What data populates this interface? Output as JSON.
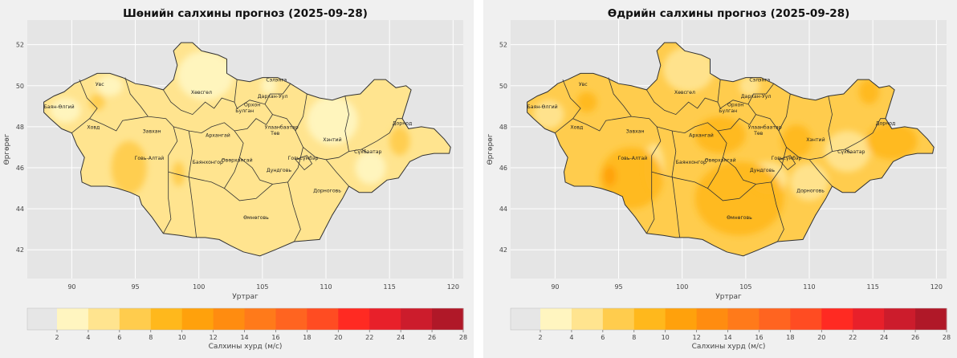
{
  "colors": {
    "panel_bg": "#f0f0f0",
    "plot_bg": "#e5e5e5",
    "grid": "#ffffff",
    "border": "#333333",
    "bins": [
      "#e6e6e6",
      "#fff5c0",
      "#ffe48f",
      "#ffcc4d",
      "#ffb81c",
      "#ffa10c",
      "#ff8c10",
      "#ff7a1a",
      "#ff6420",
      "#ff4c22",
      "#ff2a22",
      "#e8202a",
      "#cc1c2c",
      "#b01828"
    ]
  },
  "chart_data": [
    {
      "type": "heatmap",
      "title": "Шөнийн салхины прогноз (2025-09-28)",
      "xlabel": "Уртраг",
      "ylabel": "Өргөрөг",
      "xlim": [
        86.5,
        120.8
      ],
      "ylim": [
        40.6,
        53.2
      ],
      "xticks": [
        "90",
        "95",
        "100",
        "105",
        "110",
        "115",
        "120"
      ],
      "yticks": [
        "42",
        "44",
        "46",
        "48",
        "50",
        "52"
      ],
      "grid": true,
      "colorbar": {
        "label": "Салхины хурд (м/с)",
        "ticks": [
          "2",
          "4",
          "6",
          "8",
          "10",
          "12",
          "14",
          "16",
          "18",
          "20",
          "22",
          "24",
          "26",
          "28"
        ]
      },
      "base_level": "4-6",
      "hotspots": [
        {
          "lon": 94.5,
          "lat": 46.0,
          "rx": 1.4,
          "ry": 1.3,
          "level": "6-8"
        },
        {
          "lon": 92.0,
          "lat": 49.2,
          "rx": 0.6,
          "ry": 0.4,
          "level": "6-8"
        },
        {
          "lon": 115.8,
          "lat": 47.3,
          "rx": 0.8,
          "ry": 0.7,
          "level": "6-8"
        },
        {
          "lon": 98.4,
          "lat": 45.7,
          "rx": 0.5,
          "ry": 0.6,
          "level": "6-8"
        }
      ],
      "calm_areas": [
        {
          "lon": 100.5,
          "lat": 50.5,
          "rx": 2.2,
          "ry": 1.2,
          "level": "2-4"
        },
        {
          "lon": 110.5,
          "lat": 48.3,
          "rx": 2.0,
          "ry": 1.2,
          "level": "2-4"
        },
        {
          "lon": 113.5,
          "lat": 46.0,
          "rx": 1.2,
          "ry": 0.8,
          "level": "2-4"
        },
        {
          "lon": 89.5,
          "lat": 48.8,
          "rx": 1.2,
          "ry": 0.6,
          "level": "2-4"
        },
        {
          "lon": 93.0,
          "lat": 50.0,
          "rx": 1.0,
          "ry": 0.5,
          "level": "2-4"
        },
        {
          "lon": 105.5,
          "lat": 50.0,
          "rx": 0.6,
          "ry": 0.4,
          "level": "2-4"
        }
      ],
      "regions": [
        {
          "name": "Увс",
          "lon": 92.2,
          "lat": 50.0
        },
        {
          "name": "Баян-Өлгий",
          "lon": 89.0,
          "lat": 48.9
        },
        {
          "name": "Ховд",
          "lon": 91.7,
          "lat": 47.9
        },
        {
          "name": "Завхан",
          "lon": 96.3,
          "lat": 47.7
        },
        {
          "name": "Хөвсгөл",
          "lon": 100.2,
          "lat": 49.6
        },
        {
          "name": "Говь-Алтай",
          "lon": 96.1,
          "lat": 46.4
        },
        {
          "name": "Архангай",
          "lon": 101.5,
          "lat": 47.5
        },
        {
          "name": "Баянхонгор",
          "lon": 100.7,
          "lat": 46.2
        },
        {
          "name": "Өвөрхангай",
          "lon": 103.0,
          "lat": 46.3
        },
        {
          "name": "Сэлэнгэ",
          "lon": 106.1,
          "lat": 50.2
        },
        {
          "name": "Дархан-Уул",
          "lon": 105.8,
          "lat": 49.4
        },
        {
          "name": "Орхон",
          "lon": 104.2,
          "lat": 49.0
        },
        {
          "name": "Булган",
          "lon": 103.6,
          "lat": 48.7
        },
        {
          "name": "Улаанбаатар",
          "lon": 106.5,
          "lat": 47.9
        },
        {
          "name": "Төв",
          "lon": 106.0,
          "lat": 47.6
        },
        {
          "name": "Хэнтий",
          "lon": 110.5,
          "lat": 47.3
        },
        {
          "name": "Дорнод",
          "lon": 116.0,
          "lat": 48.1
        },
        {
          "name": "Сүхбаатар",
          "lon": 113.3,
          "lat": 46.7
        },
        {
          "name": "Дундговь",
          "lon": 106.3,
          "lat": 45.8
        },
        {
          "name": "Говьсүмбэр",
          "lon": 108.2,
          "lat": 46.4
        },
        {
          "name": "Дорноговь",
          "lon": 110.1,
          "lat": 44.8
        },
        {
          "name": "Өмнөговь",
          "lon": 104.5,
          "lat": 43.5
        }
      ]
    },
    {
      "type": "heatmap",
      "title": "Өдрийн салхины прогноз (2025-09-28)",
      "xlabel": "Уртраг",
      "ylabel": "Өргөрөг",
      "xlim": [
        86.5,
        120.8
      ],
      "ylim": [
        40.6,
        53.2
      ],
      "xticks": [
        "90",
        "95",
        "100",
        "105",
        "110",
        "115",
        "120"
      ],
      "yticks": [
        "42",
        "44",
        "46",
        "48",
        "50",
        "52"
      ],
      "grid": true,
      "colorbar": {
        "label": "Салхины хурд (м/с)",
        "ticks": [
          "2",
          "4",
          "6",
          "8",
          "10",
          "12",
          "14",
          "16",
          "18",
          "20",
          "22",
          "24",
          "26",
          "28"
        ]
      },
      "base_level": "6-8",
      "hotspots": [
        {
          "lon": 96.0,
          "lat": 45.5,
          "rx": 2.5,
          "ry": 1.5,
          "level": "8-10"
        },
        {
          "lon": 104.5,
          "lat": 44.5,
          "rx": 3.5,
          "ry": 1.8,
          "level": "8-10"
        },
        {
          "lon": 103.0,
          "lat": 47.6,
          "rx": 2.0,
          "ry": 0.9,
          "level": "8-10"
        },
        {
          "lon": 116.5,
          "lat": 47.3,
          "rx": 2.0,
          "ry": 0.9,
          "level": "8-10"
        },
        {
          "lon": 114.7,
          "lat": 49.7,
          "rx": 0.8,
          "ry": 0.6,
          "level": "8-10"
        },
        {
          "lon": 92.5,
          "lat": 49.2,
          "rx": 0.8,
          "ry": 0.5,
          "level": "8-10"
        },
        {
          "lon": 109.0,
          "lat": 47.3,
          "rx": 1.2,
          "ry": 0.8,
          "level": "8-10"
        },
        {
          "lon": 94.3,
          "lat": 45.6,
          "rx": 0.5,
          "ry": 0.5,
          "level": "10-12"
        }
      ],
      "calm_areas": [
        {
          "lon": 100.5,
          "lat": 50.8,
          "rx": 2.0,
          "ry": 1.1,
          "level": "4-6"
        },
        {
          "lon": 97.8,
          "lat": 46.0,
          "rx": 0.8,
          "ry": 1.2,
          "level": "4-6"
        },
        {
          "lon": 106.8,
          "lat": 45.5,
          "rx": 1.5,
          "ry": 0.8,
          "level": "4-6"
        },
        {
          "lon": 110.0,
          "lat": 45.3,
          "rx": 1.5,
          "ry": 0.9,
          "level": "4-6"
        },
        {
          "lon": 113.0,
          "lat": 46.8,
          "rx": 1.8,
          "ry": 1.0,
          "level": "4-6"
        },
        {
          "lon": 89.5,
          "lat": 48.6,
          "rx": 1.2,
          "ry": 0.7,
          "level": "4-6"
        },
        {
          "lon": 105.3,
          "lat": 50.0,
          "rx": 0.8,
          "ry": 0.5,
          "level": "4-6"
        }
      ],
      "regions": [
        {
          "name": "Увс",
          "lon": 92.2,
          "lat": 50.0
        },
        {
          "name": "Баян-Өлгий",
          "lon": 89.0,
          "lat": 48.9
        },
        {
          "name": "Ховд",
          "lon": 91.7,
          "lat": 47.9
        },
        {
          "name": "Завхан",
          "lon": 96.3,
          "lat": 47.7
        },
        {
          "name": "Хөвсгөл",
          "lon": 100.2,
          "lat": 49.6
        },
        {
          "name": "Говь-Алтай",
          "lon": 96.1,
          "lat": 46.4
        },
        {
          "name": "Архангай",
          "lon": 101.5,
          "lat": 47.5
        },
        {
          "name": "Баянхонгор",
          "lon": 100.7,
          "lat": 46.2
        },
        {
          "name": "Өвөрхангай",
          "lon": 103.0,
          "lat": 46.3
        },
        {
          "name": "Сэлэнгэ",
          "lon": 106.1,
          "lat": 50.2
        },
        {
          "name": "Дархан-Уул",
          "lon": 105.8,
          "lat": 49.4
        },
        {
          "name": "Орхон",
          "lon": 104.2,
          "lat": 49.0
        },
        {
          "name": "Булган",
          "lon": 103.6,
          "lat": 48.7
        },
        {
          "name": "Улаанбаатар",
          "lon": 106.5,
          "lat": 47.9
        },
        {
          "name": "Төв",
          "lon": 106.0,
          "lat": 47.6
        },
        {
          "name": "Хэнтий",
          "lon": 110.5,
          "lat": 47.3
        },
        {
          "name": "Дорнод",
          "lon": 116.0,
          "lat": 48.1
        },
        {
          "name": "Сүхбаатар",
          "lon": 113.3,
          "lat": 46.7
        },
        {
          "name": "Дундговь",
          "lon": 106.3,
          "lat": 45.8
        },
        {
          "name": "Говьсүмбэр",
          "lon": 108.2,
          "lat": 46.4
        },
        {
          "name": "Дорноговь",
          "lon": 110.1,
          "lat": 44.8
        },
        {
          "name": "Өмнөговь",
          "lon": 104.5,
          "lat": 43.5
        }
      ]
    }
  ]
}
